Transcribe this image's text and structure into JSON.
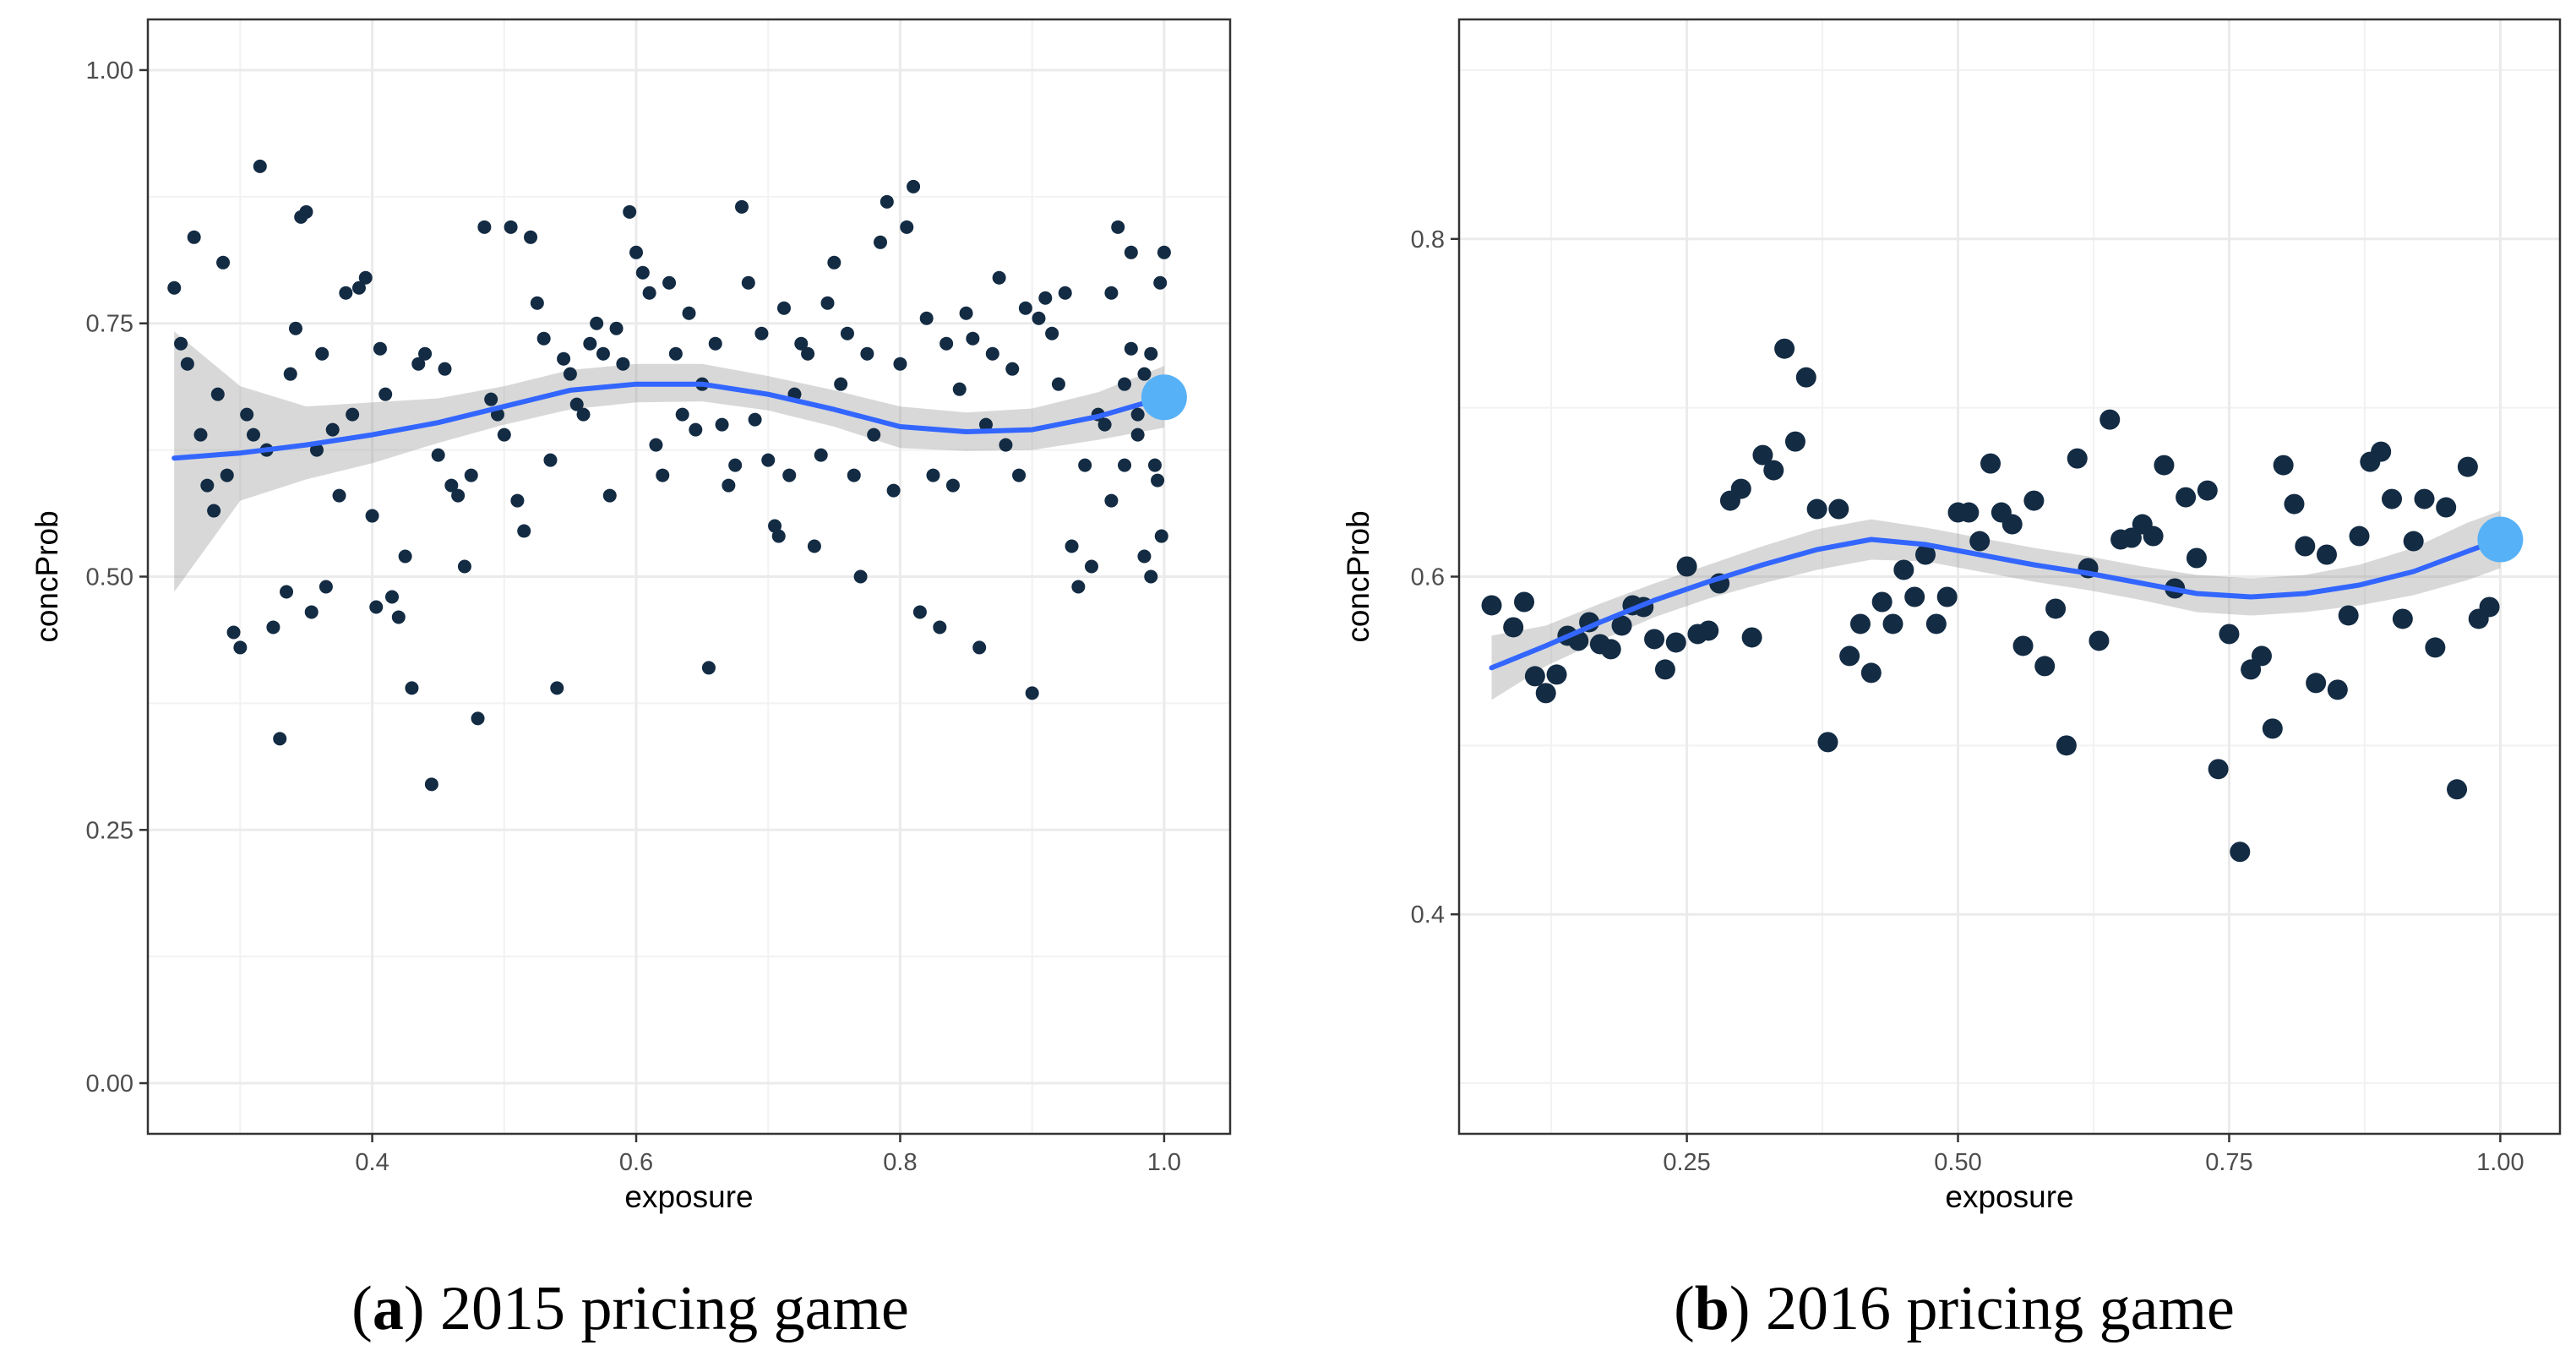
{
  "chart_data": [
    {
      "type": "scatter",
      "caption_letter": "a",
      "caption_text": "2015 pricing game",
      "xlabel": "exposure",
      "ylabel": "concProb",
      "xlim": [
        0.23,
        1.05
      ],
      "ylim": [
        -0.05,
        1.05
      ],
      "xticks": [
        0.4,
        0.6,
        0.8,
        1.0
      ],
      "xtick_labels": [
        "0.4",
        "0.6",
        "0.8",
        "1.0"
      ],
      "yticks": [
        0.0,
        0.25,
        0.5,
        0.75,
        1.0
      ],
      "ytick_labels": [
        "0.00",
        "0.25",
        "0.50",
        "0.75",
        "1.00"
      ],
      "grid": true,
      "point_color": "#132b43",
      "highlight_color": "#56b1f7",
      "smooth_color": "#3366ff",
      "band_color": "#999999",
      "highlight_point": [
        1.0,
        0.677
      ],
      "smooth_fit": [
        [
          0.25,
          0.617
        ],
        [
          0.3,
          0.622
        ],
        [
          0.35,
          0.63
        ],
        [
          0.4,
          0.64
        ],
        [
          0.45,
          0.652
        ],
        [
          0.5,
          0.668
        ],
        [
          0.55,
          0.684
        ],
        [
          0.6,
          0.69
        ],
        [
          0.65,
          0.69
        ],
        [
          0.7,
          0.68
        ],
        [
          0.75,
          0.665
        ],
        [
          0.8,
          0.648
        ],
        [
          0.85,
          0.643
        ],
        [
          0.9,
          0.645
        ],
        [
          0.95,
          0.658
        ],
        [
          1.0,
          0.677
        ]
      ],
      "smooth_band": [
        [
          0.25,
          0.485,
          0.742
        ],
        [
          0.3,
          0.575,
          0.688
        ],
        [
          0.35,
          0.596,
          0.668
        ],
        [
          0.4,
          0.612,
          0.672
        ],
        [
          0.45,
          0.632,
          0.676
        ],
        [
          0.5,
          0.65,
          0.688
        ],
        [
          0.55,
          0.665,
          0.704
        ],
        [
          0.6,
          0.672,
          0.71
        ],
        [
          0.65,
          0.673,
          0.71
        ],
        [
          0.7,
          0.664,
          0.698
        ],
        [
          0.75,
          0.648,
          0.684
        ],
        [
          0.8,
          0.627,
          0.668
        ],
        [
          0.85,
          0.624,
          0.662
        ],
        [
          0.9,
          0.625,
          0.666
        ],
        [
          0.95,
          0.635,
          0.682
        ],
        [
          1.0,
          0.647,
          0.708
        ]
      ],
      "points": [
        [
          0.25,
          0.785
        ],
        [
          0.255,
          0.73
        ],
        [
          0.26,
          0.71
        ],
        [
          0.265,
          0.835
        ],
        [
          0.27,
          0.64
        ],
        [
          0.275,
          0.59
        ],
        [
          0.28,
          0.565
        ],
        [
          0.283,
          0.68
        ],
        [
          0.287,
          0.81
        ],
        [
          0.29,
          0.6
        ],
        [
          0.295,
          0.445
        ],
        [
          0.3,
          0.43
        ],
        [
          0.305,
          0.66
        ],
        [
          0.31,
          0.64
        ],
        [
          0.315,
          0.905
        ],
        [
          0.32,
          0.625
        ],
        [
          0.325,
          0.45
        ],
        [
          0.33,
          0.34
        ],
        [
          0.335,
          0.485
        ],
        [
          0.338,
          0.7
        ],
        [
          0.342,
          0.745
        ],
        [
          0.346,
          0.855
        ],
        [
          0.35,
          0.86
        ],
        [
          0.354,
          0.465
        ],
        [
          0.358,
          0.625
        ],
        [
          0.362,
          0.72
        ],
        [
          0.365,
          0.49
        ],
        [
          0.37,
          0.645
        ],
        [
          0.375,
          0.58
        ],
        [
          0.38,
          0.78
        ],
        [
          0.385,
          0.66
        ],
        [
          0.39,
          0.785
        ],
        [
          0.395,
          0.795
        ],
        [
          0.4,
          0.56
        ],
        [
          0.403,
          0.47
        ],
        [
          0.406,
          0.725
        ],
        [
          0.41,
          0.68
        ],
        [
          0.415,
          0.48
        ],
        [
          0.42,
          0.46
        ],
        [
          0.425,
          0.52
        ],
        [
          0.43,
          0.39
        ],
        [
          0.435,
          0.71
        ],
        [
          0.44,
          0.72
        ],
        [
          0.445,
          0.295
        ],
        [
          0.45,
          0.62
        ],
        [
          0.455,
          0.705
        ],
        [
          0.46,
          0.59
        ],
        [
          0.465,
          0.58
        ],
        [
          0.47,
          0.51
        ],
        [
          0.475,
          0.6
        ],
        [
          0.48,
          0.36
        ],
        [
          0.485,
          0.845
        ],
        [
          0.49,
          0.675
        ],
        [
          0.495,
          0.66
        ],
        [
          0.5,
          0.64
        ],
        [
          0.505,
          0.845
        ],
        [
          0.51,
          0.575
        ],
        [
          0.515,
          0.545
        ],
        [
          0.52,
          0.835
        ],
        [
          0.525,
          0.77
        ],
        [
          0.53,
          0.735
        ],
        [
          0.535,
          0.615
        ],
        [
          0.54,
          0.39
        ],
        [
          0.545,
          0.715
        ],
        [
          0.55,
          0.7
        ],
        [
          0.555,
          0.67
        ],
        [
          0.56,
          0.66
        ],
        [
          0.565,
          0.73
        ],
        [
          0.57,
          0.75
        ],
        [
          0.575,
          0.72
        ],
        [
          0.58,
          0.58
        ],
        [
          0.585,
          0.745
        ],
        [
          0.59,
          0.71
        ],
        [
          0.595,
          0.86
        ],
        [
          0.6,
          0.82
        ],
        [
          0.605,
          0.8
        ],
        [
          0.61,
          0.78
        ],
        [
          0.615,
          0.63
        ],
        [
          0.62,
          0.6
        ],
        [
          0.625,
          0.79
        ],
        [
          0.63,
          0.72
        ],
        [
          0.635,
          0.66
        ],
        [
          0.64,
          0.76
        ],
        [
          0.645,
          0.645
        ],
        [
          0.65,
          0.69
        ],
        [
          0.655,
          0.41
        ],
        [
          0.66,
          0.73
        ],
        [
          0.665,
          0.65
        ],
        [
          0.67,
          0.59
        ],
        [
          0.675,
          0.61
        ],
        [
          0.68,
          0.865
        ],
        [
          0.685,
          0.79
        ],
        [
          0.69,
          0.655
        ],
        [
          0.695,
          0.74
        ],
        [
          0.7,
          0.615
        ],
        [
          0.705,
          0.55
        ],
        [
          0.708,
          0.54
        ],
        [
          0.712,
          0.765
        ],
        [
          0.716,
          0.6
        ],
        [
          0.72,
          0.68
        ],
        [
          0.725,
          0.73
        ],
        [
          0.73,
          0.72
        ],
        [
          0.735,
          0.53
        ],
        [
          0.74,
          0.62
        ],
        [
          0.745,
          0.77
        ],
        [
          0.75,
          0.81
        ],
        [
          0.755,
          0.69
        ],
        [
          0.76,
          0.74
        ],
        [
          0.765,
          0.6
        ],
        [
          0.77,
          0.5
        ],
        [
          0.775,
          0.72
        ],
        [
          0.78,
          0.64
        ],
        [
          0.785,
          0.83
        ],
        [
          0.79,
          0.87
        ],
        [
          0.795,
          0.585
        ],
        [
          0.8,
          0.71
        ],
        [
          0.805,
          0.845
        ],
        [
          0.81,
          0.885
        ],
        [
          0.815,
          0.465
        ],
        [
          0.82,
          0.755
        ],
        [
          0.825,
          0.6
        ],
        [
          0.83,
          0.45
        ],
        [
          0.835,
          0.73
        ],
        [
          0.84,
          0.59
        ],
        [
          0.845,
          0.685
        ],
        [
          0.85,
          0.76
        ],
        [
          0.855,
          0.735
        ],
        [
          0.86,
          0.43
        ],
        [
          0.865,
          0.65
        ],
        [
          0.87,
          0.72
        ],
        [
          0.875,
          0.795
        ],
        [
          0.88,
          0.63
        ],
        [
          0.885,
          0.705
        ],
        [
          0.89,
          0.6
        ],
        [
          0.895,
          0.765
        ],
        [
          0.9,
          0.385
        ],
        [
          0.905,
          0.755
        ],
        [
          0.91,
          0.775
        ],
        [
          0.915,
          0.74
        ],
        [
          0.92,
          0.69
        ],
        [
          0.925,
          0.78
        ],
        [
          0.93,
          0.53
        ],
        [
          0.935,
          0.49
        ],
        [
          0.94,
          0.61
        ],
        [
          0.945,
          0.51
        ],
        [
          0.95,
          0.66
        ],
        [
          0.955,
          0.65
        ],
        [
          0.96,
          0.78
        ],
        [
          0.965,
          0.845
        ],
        [
          0.97,
          0.61
        ],
        [
          0.975,
          0.82
        ],
        [
          0.98,
          0.66
        ],
        [
          0.985,
          0.7
        ],
        [
          0.99,
          0.72
        ],
        [
          0.995,
          0.595
        ],
        [
          0.998,
          0.54
        ],
        [
          0.96,
          0.575
        ],
        [
          0.97,
          0.69
        ],
        [
          0.975,
          0.725
        ],
        [
          0.98,
          0.64
        ],
        [
          0.985,
          0.52
        ],
        [
          0.99,
          0.5
        ],
        [
          0.993,
          0.61
        ],
        [
          0.997,
          0.79
        ],
        [
          1.0,
          0.82
        ]
      ]
    },
    {
      "type": "scatter",
      "caption_letter": "b",
      "caption_text": "2016 pricing game",
      "xlabel": "exposure",
      "ylabel": "concProb",
      "xlim": [
        0.04,
        1.055
      ],
      "ylim": [
        0.27,
        0.93
      ],
      "xticks": [
        0.25,
        0.5,
        0.75,
        1.0
      ],
      "xtick_labels": [
        "0.25",
        "0.50",
        "0.75",
        "1.00"
      ],
      "yticks": [
        0.4,
        0.6,
        0.8
      ],
      "ytick_labels": [
        "0.4",
        "0.6",
        "0.8"
      ],
      "grid": true,
      "point_color": "#132b43",
      "highlight_color": "#56b1f7",
      "smooth_color": "#3366ff",
      "band_color": "#999999",
      "highlight_point": [
        1.0,
        0.622
      ],
      "smooth_fit": [
        [
          0.07,
          0.546
        ],
        [
          0.12,
          0.559
        ],
        [
          0.17,
          0.573
        ],
        [
          0.22,
          0.586
        ],
        [
          0.27,
          0.597
        ],
        [
          0.32,
          0.607
        ],
        [
          0.37,
          0.616
        ],
        [
          0.42,
          0.622
        ],
        [
          0.47,
          0.619
        ],
        [
          0.52,
          0.613
        ],
        [
          0.57,
          0.607
        ],
        [
          0.62,
          0.602
        ],
        [
          0.67,
          0.596
        ],
        [
          0.72,
          0.59
        ],
        [
          0.77,
          0.588
        ],
        [
          0.82,
          0.59
        ],
        [
          0.87,
          0.595
        ],
        [
          0.92,
          0.603
        ],
        [
          0.97,
          0.615
        ],
        [
          1.0,
          0.622
        ]
      ],
      "smooth_band": [
        [
          0.07,
          0.527,
          0.565
        ],
        [
          0.12,
          0.547,
          0.571
        ],
        [
          0.17,
          0.562,
          0.584
        ],
        [
          0.22,
          0.576,
          0.596
        ],
        [
          0.27,
          0.587,
          0.607
        ],
        [
          0.32,
          0.596,
          0.618
        ],
        [
          0.37,
          0.604,
          0.628
        ],
        [
          0.42,
          0.61,
          0.634
        ],
        [
          0.47,
          0.609,
          0.629
        ],
        [
          0.52,
          0.603,
          0.623
        ],
        [
          0.57,
          0.597,
          0.617
        ],
        [
          0.62,
          0.592,
          0.612
        ],
        [
          0.67,
          0.586,
          0.606
        ],
        [
          0.72,
          0.579,
          0.601
        ],
        [
          0.77,
          0.577,
          0.599
        ],
        [
          0.82,
          0.579,
          0.601
        ],
        [
          0.87,
          0.583,
          0.607
        ],
        [
          0.92,
          0.589,
          0.617
        ],
        [
          0.97,
          0.598,
          0.632
        ],
        [
          1.0,
          0.605,
          0.639
        ]
      ],
      "points": [
        [
          0.07,
          0.583
        ],
        [
          0.09,
          0.57
        ],
        [
          0.1,
          0.585
        ],
        [
          0.11,
          0.541
        ],
        [
          0.12,
          0.531
        ],
        [
          0.13,
          0.542
        ],
        [
          0.14,
          0.565
        ],
        [
          0.15,
          0.562
        ],
        [
          0.16,
          0.573
        ],
        [
          0.17,
          0.56
        ],
        [
          0.18,
          0.557
        ],
        [
          0.19,
          0.571
        ],
        [
          0.2,
          0.583
        ],
        [
          0.21,
          0.582
        ],
        [
          0.22,
          0.563
        ],
        [
          0.23,
          0.545
        ],
        [
          0.24,
          0.561
        ],
        [
          0.25,
          0.606
        ],
        [
          0.26,
          0.566
        ],
        [
          0.27,
          0.568
        ],
        [
          0.28,
          0.596
        ],
        [
          0.29,
          0.645
        ],
        [
          0.3,
          0.652
        ],
        [
          0.31,
          0.564
        ],
        [
          0.32,
          0.672
        ],
        [
          0.33,
          0.663
        ],
        [
          0.34,
          0.735
        ],
        [
          0.35,
          0.68
        ],
        [
          0.36,
          0.718
        ],
        [
          0.37,
          0.64
        ],
        [
          0.38,
          0.502
        ],
        [
          0.39,
          0.64
        ],
        [
          0.4,
          0.553
        ],
        [
          0.41,
          0.572
        ],
        [
          0.42,
          0.543
        ],
        [
          0.43,
          0.585
        ],
        [
          0.44,
          0.572
        ],
        [
          0.45,
          0.604
        ],
        [
          0.46,
          0.588
        ],
        [
          0.47,
          0.613
        ],
        [
          0.48,
          0.572
        ],
        [
          0.49,
          0.588
        ],
        [
          0.5,
          0.638
        ],
        [
          0.51,
          0.638
        ],
        [
          0.52,
          0.621
        ],
        [
          0.53,
          0.667
        ],
        [
          0.54,
          0.638
        ],
        [
          0.55,
          0.631
        ],
        [
          0.56,
          0.559
        ],
        [
          0.57,
          0.645
        ],
        [
          0.58,
          0.547
        ],
        [
          0.59,
          0.581
        ],
        [
          0.6,
          0.5
        ],
        [
          0.61,
          0.67
        ],
        [
          0.62,
          0.605
        ],
        [
          0.63,
          0.562
        ],
        [
          0.64,
          0.693
        ],
        [
          0.65,
          0.622
        ],
        [
          0.66,
          0.623
        ],
        [
          0.67,
          0.631
        ],
        [
          0.68,
          0.624
        ],
        [
          0.69,
          0.666
        ],
        [
          0.7,
          0.593
        ],
        [
          0.71,
          0.647
        ],
        [
          0.72,
          0.611
        ],
        [
          0.73,
          0.651
        ],
        [
          0.74,
          0.486
        ],
        [
          0.75,
          0.566
        ],
        [
          0.76,
          0.437
        ],
        [
          0.77,
          0.545
        ],
        [
          0.78,
          0.553
        ],
        [
          0.79,
          0.51
        ],
        [
          0.8,
          0.666
        ],
        [
          0.81,
          0.643
        ],
        [
          0.82,
          0.618
        ],
        [
          0.83,
          0.537
        ],
        [
          0.84,
          0.613
        ],
        [
          0.85,
          0.533
        ],
        [
          0.86,
          0.577
        ],
        [
          0.87,
          0.624
        ],
        [
          0.88,
          0.668
        ],
        [
          0.89,
          0.674
        ],
        [
          0.9,
          0.646
        ],
        [
          0.91,
          0.575
        ],
        [
          0.92,
          0.621
        ],
        [
          0.93,
          0.646
        ],
        [
          0.94,
          0.558
        ],
        [
          0.95,
          0.641
        ],
        [
          0.96,
          0.474
        ],
        [
          0.97,
          0.665
        ],
        [
          0.98,
          0.575
        ],
        [
          0.99,
          0.582
        ]
      ]
    }
  ]
}
